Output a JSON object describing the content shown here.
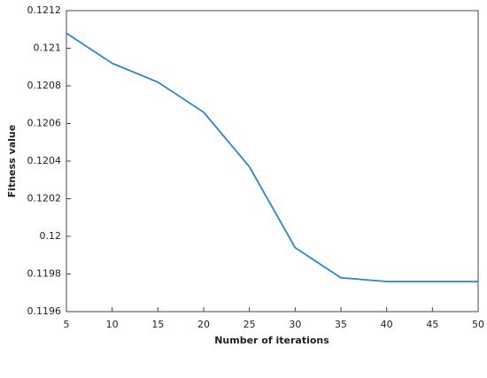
{
  "chart_data": {
    "type": "line",
    "x_label": "Number of iterations",
    "y_label": "Fitness value",
    "x": [
      5,
      10,
      15,
      20,
      25,
      30,
      35,
      40,
      45,
      50
    ],
    "series": [
      {
        "color": "#2a86c5",
        "values": [
          0.12108,
          0.12092,
          0.12082,
          0.12066,
          0.12037,
          0.11994,
          0.11978,
          0.11976,
          0.11976,
          0.11976
        ]
      }
    ],
    "xlim": [
      5,
      50
    ],
    "xticks": [
      5,
      10,
      15,
      20,
      25,
      30,
      35,
      40,
      45,
      50
    ],
    "ylim": [
      0.1196,
      0.1212
    ],
    "yticks": [
      0.1196,
      0.1198,
      0.12,
      0.1202,
      0.1204,
      0.1206,
      0.1208,
      0.121,
      0.1212
    ],
    "grid": false
  }
}
